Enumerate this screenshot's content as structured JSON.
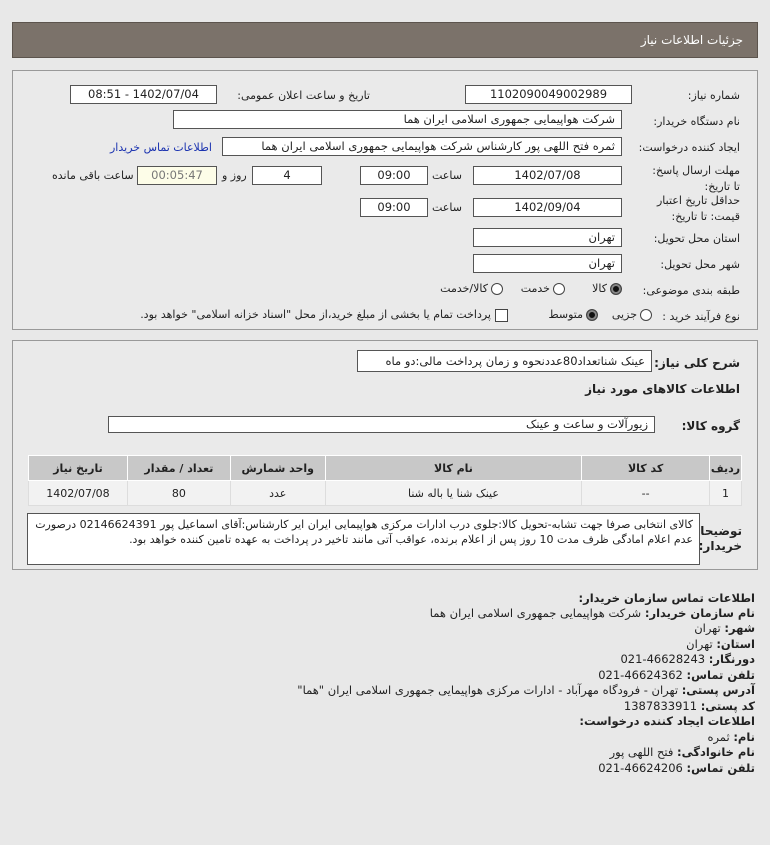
{
  "header": {
    "title": "جزئیات اطلاعات نیاز"
  },
  "form": {
    "need_number_label": "شماره نیاز:",
    "need_number": "1102090049002989",
    "announce_label": "تاریخ و ساعت اعلان عمومی:",
    "announce_value": "1402/07/04 - 08:51",
    "buyer_org_label": "نام دستگاه خریدار:",
    "buyer_org": "شرکت هواپیمایی جمهوری اسلامی ایران هما",
    "creator_label": "ایجاد کننده درخواست:",
    "creator": "ثمره فتح اللهی پور کارشناس شرکت هواپیمایی جمهوری اسلامی ایران هما",
    "contact_link": "اطلاعات تماس خریدار",
    "reply_deadline_label": "مهلت ارسال پاسخ: تا تاریخ:",
    "reply_date": "1402/07/08",
    "time_label": "ساعت",
    "reply_time": "09:00",
    "days": "4",
    "days_label": "روز و",
    "remaining": "00:05:47",
    "remaining_label": "ساعت باقی مانده",
    "price_validity_label": "حداقل تاریخ اعتبار قیمت: تا تاریخ:",
    "price_date": "1402/09/04",
    "price_time": "09:00",
    "province_label": "استان محل تحویل:",
    "province": "تهران",
    "city_label": "شهر محل تحویل:",
    "city": "تهران",
    "category_label": "طبقه بندی موضوعی:",
    "category_options": [
      "کالا",
      "خدمت",
      "کالا/خدمت"
    ],
    "category_selected": "کالا",
    "process_label": "نوع فرآیند خرید :",
    "process_options": [
      "جزیی",
      "متوسط"
    ],
    "process_selected": "متوسط",
    "treasury_text": "پرداخت تمام یا بخشی از مبلغ خرید،از محل \"اسناد خزانه اسلامی\" خواهد بود."
  },
  "details": {
    "summary_label": "شرح کلی نیاز:",
    "summary": "عینک شناتعداد80عددنحوه و زمان پرداخت مالی:دو ماه",
    "goods_heading": "اطلاعات کالاهای مورد نیاز",
    "group_label": "گروه کالا:",
    "group": "زیورآلات و ساعت و عینک",
    "table": {
      "headers": [
        "ردیف",
        "کد کالا",
        "نام کالا",
        "واحد شمارش",
        "تعداد / مقدار",
        "تاریخ نیاز"
      ],
      "rows": [
        [
          "1",
          "--",
          "عینک شنا یا باله شنا",
          "عدد",
          "80",
          "1402/07/08"
        ]
      ]
    },
    "desc_label": "توضیحات خریدار:",
    "desc": "کالای انتخابی صرفا جهت تشابه-تحویل کالا:جلوی درب ادارات مرکزی هواپیمایی ایران ایر کارشناس:آقای اسماعیل پور 02146624391 درصورت عدم اعلام امادگی ظرف مدت 10 روز پس از اعلام برنده، عواقب آتی مانند تاخیر در پرداخت به عهده تامین کننده خواهد بود."
  },
  "contact": {
    "heading": "اطلاعات تماس سازمان خریدار:",
    "org_label": "نام سازمان خریدار:",
    "org": "شرکت هواپیمایی جمهوری اسلامی ایران هما",
    "city_label": "شهر:",
    "city": "تهران",
    "province_label": "استان:",
    "province": "تهران",
    "fax_label": "دورنگار:",
    "fax": "46628243-021",
    "phone_label": "تلفن تماس:",
    "phone": "46624362-021",
    "address_label": "آدرس پستی:",
    "address": "تهران - فرودگاه مهرآباد - ادارات مرکزی هواپیمایی جمهوری اسلامی ایران \"هما\"",
    "postal_label": "کد پستی:",
    "postal": "1387833911",
    "creator_heading": "اطلاعات ایجاد کننده درخواست:",
    "name_label": "نام:",
    "name": "ثمره",
    "family_label": "نام خانوادگی:",
    "family": "فتح اللهی پور",
    "cphone_label": "تلفن تماس:",
    "cphone": "46624206-021"
  }
}
